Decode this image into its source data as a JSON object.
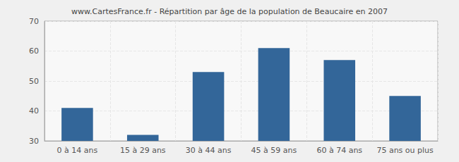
{
  "chart_data": {
    "type": "bar",
    "title": "www.CartesFrance.fr - Répartition par âge de la population de Beaucaire en 2007",
    "categories": [
      "0 à 14 ans",
      "15 à 29 ans",
      "30 à 44 ans",
      "45 à 59 ans",
      "60 à 74 ans",
      "75 ans ou plus"
    ],
    "values": [
      41,
      32,
      53,
      61,
      57,
      45
    ],
    "color": "#336699",
    "ylim": [
      30,
      70
    ],
    "yticks": [
      30,
      40,
      50,
      60,
      70
    ],
    "grid": true
  }
}
